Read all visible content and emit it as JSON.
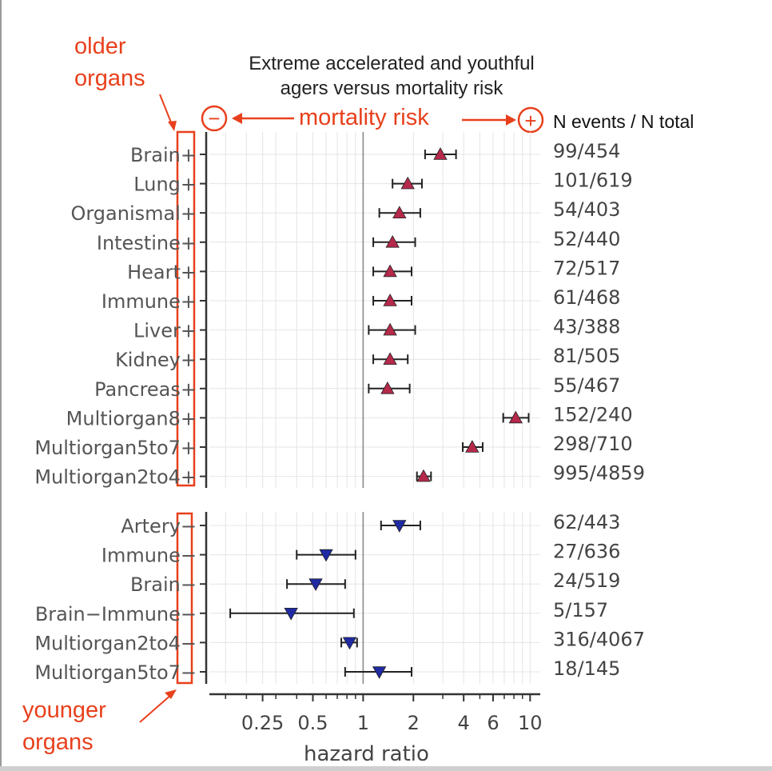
{
  "annotations": {
    "older": "older\norgans",
    "younger": "younger\norgans",
    "mortality_label": "mortality risk",
    "minus_symbol": "−",
    "plus_symbol": "+"
  },
  "chart_data": {
    "type": "scatter",
    "title": "Extreme accelerated and youthful agers versus mortality risk",
    "title_lines": [
      "Extreme accelerated and youthful",
      "agers versus mortality risk"
    ],
    "xlabel": "hazard ratio",
    "right_header": "N events / N total",
    "x_scale": "log",
    "xlim": [
      0.12,
      11.5
    ],
    "x_ticks": [
      0.25,
      0.5,
      1,
      2,
      4,
      6,
      10
    ],
    "x_tick_labels": [
      "0.25",
      "0.5",
      "1",
      "2",
      "4",
      "6",
      "10"
    ],
    "x_minor_ticks": [
      0.15,
      0.2,
      0.3,
      0.4,
      0.6,
      0.7,
      0.8,
      0.9,
      3,
      5,
      7,
      8,
      9
    ],
    "reference_line": 1,
    "grid": true,
    "colors": {
      "older": "#b5294a",
      "younger": "#1f2aa3",
      "annotation": "#e8401c"
    },
    "panels": [
      {
        "group": "older",
        "marker": "triangle-up",
        "rows": [
          {
            "label": "Brain+",
            "hr": 2.9,
            "lo": 2.35,
            "hi": 3.6,
            "n": "99/454"
          },
          {
            "label": "Lung+",
            "hr": 1.85,
            "lo": 1.5,
            "hi": 2.25,
            "n": "101/619"
          },
          {
            "label": "Organismal+",
            "hr": 1.65,
            "lo": 1.25,
            "hi": 2.2,
            "n": "54/403"
          },
          {
            "label": "Intestine+",
            "hr": 1.5,
            "lo": 1.15,
            "hi": 2.05,
            "n": "52/440"
          },
          {
            "label": "Heart+",
            "hr": 1.45,
            "lo": 1.15,
            "hi": 1.95,
            "n": "72/517"
          },
          {
            "label": "Immune+",
            "hr": 1.45,
            "lo": 1.15,
            "hi": 1.95,
            "n": "61/468"
          },
          {
            "label": "Liver+",
            "hr": 1.45,
            "lo": 1.08,
            "hi": 2.05,
            "n": "43/388"
          },
          {
            "label": "Kidney+",
            "hr": 1.45,
            "lo": 1.15,
            "hi": 1.85,
            "n": "81/505"
          },
          {
            "label": "Pancreas+",
            "hr": 1.4,
            "lo": 1.08,
            "hi": 1.9,
            "n": "55/467"
          },
          {
            "label": "Multiorgan8+",
            "hr": 8.2,
            "lo": 6.9,
            "hi": 9.8,
            "n": "152/240"
          },
          {
            "label": "Multiorgan5to7+",
            "hr": 4.5,
            "lo": 3.95,
            "hi": 5.2,
            "n": "298/710"
          },
          {
            "label": "Multiorgan2to4+",
            "hr": 2.3,
            "lo": 2.1,
            "hi": 2.55,
            "n": "995/4859"
          }
        ]
      },
      {
        "group": "younger",
        "marker": "triangle-down",
        "rows": [
          {
            "label": "Artery−",
            "hr": 1.65,
            "lo": 1.28,
            "hi": 2.2,
            "n": "62/443"
          },
          {
            "label": "Immune−",
            "hr": 0.6,
            "lo": 0.4,
            "hi": 0.9,
            "n": "27/636"
          },
          {
            "label": "Brain−",
            "hr": 0.52,
            "lo": 0.35,
            "hi": 0.78,
            "n": "24/519"
          },
          {
            "label": "Brain−Immune−",
            "hr": 0.37,
            "lo": 0.16,
            "hi": 0.88,
            "n": "5/157"
          },
          {
            "label": "Multiorgan2to4−",
            "hr": 0.83,
            "lo": 0.74,
            "hi": 0.92,
            "n": "316/4067"
          },
          {
            "label": "Multiorgan5to7−",
            "hr": 1.25,
            "lo": 0.78,
            "hi": 1.95,
            "n": "18/145"
          }
        ]
      }
    ]
  }
}
